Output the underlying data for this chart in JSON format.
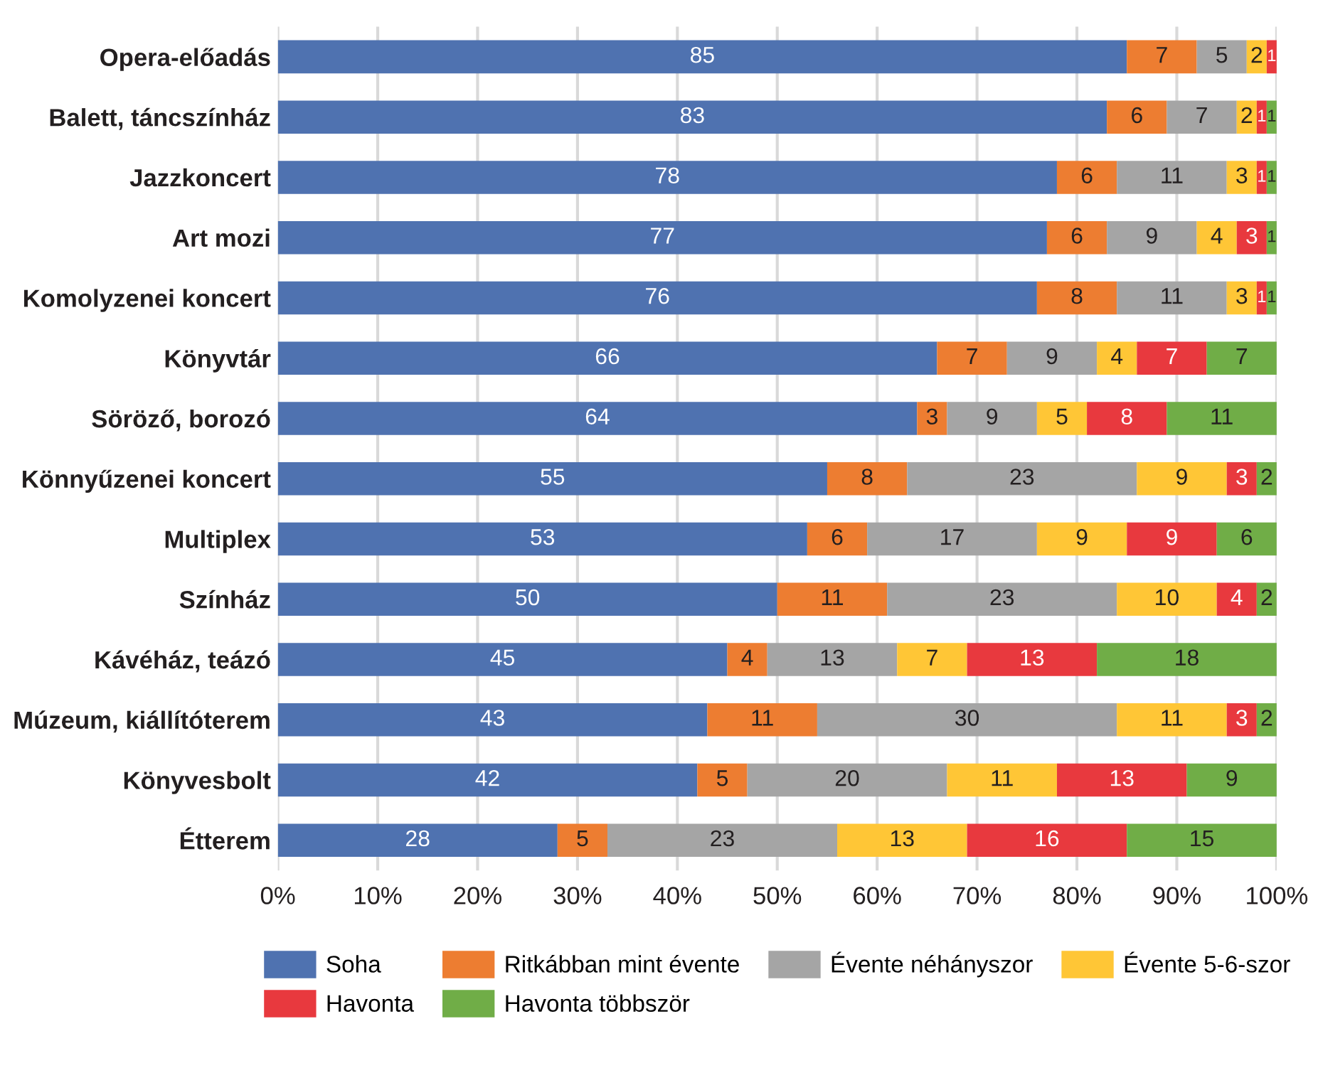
{
  "chart_data": {
    "type": "bar",
    "orientation": "horizontal",
    "stacked": true,
    "data_labels": true,
    "grid": "x",
    "legend": "bottom",
    "categories": [
      "Opera-előadás",
      "Balett, táncszínház",
      "Jazzkoncert",
      "Art mozi",
      "Komolyzenei koncert",
      "Könyvtár",
      "Söröző, borozó",
      "Könnyűzenei koncert",
      "Multiplex",
      "Színház",
      "Kávéház, teázó",
      "Múzeum, kiállítóterem",
      "Könyvesbolt",
      "Étterem"
    ],
    "xlim": [
      0,
      100
    ],
    "xticks": [
      {
        "value": 0,
        "label": "0%"
      },
      {
        "value": 10,
        "label": "10%"
      },
      {
        "value": 20,
        "label": "20%"
      },
      {
        "value": 30,
        "label": "30%"
      },
      {
        "value": 40,
        "label": "40%"
      },
      {
        "value": 50,
        "label": "50%"
      },
      {
        "value": 60,
        "label": "60%"
      },
      {
        "value": 70,
        "label": "70%"
      },
      {
        "value": 80,
        "label": "80%"
      },
      {
        "value": 90,
        "label": "90%"
      },
      {
        "value": 100,
        "label": "100%"
      }
    ],
    "series": [
      {
        "name": "Soha",
        "color": "#4f72b0",
        "values": [
          85,
          83,
          78,
          77,
          76,
          66,
          64,
          55,
          53,
          50,
          45,
          43,
          42,
          28
        ]
      },
      {
        "name": "Ritkábban mint évente",
        "color": "#ed7d31",
        "values": [
          7,
          6,
          6,
          6,
          8,
          7,
          3,
          8,
          6,
          11,
          4,
          11,
          5,
          5
        ]
      },
      {
        "name": "Évente néhányszor",
        "color": "#a5a5a5",
        "values": [
          5,
          7,
          11,
          9,
          11,
          9,
          9,
          23,
          17,
          23,
          13,
          30,
          20,
          23
        ]
      },
      {
        "name": "Évente 5-6-szor",
        "color": "#ffc636",
        "values": [
          2,
          2,
          3,
          4,
          3,
          4,
          5,
          9,
          9,
          10,
          7,
          11,
          11,
          13
        ]
      },
      {
        "name": "Havonta",
        "color": "#e8393e",
        "values": [
          1,
          1,
          1,
          3,
          1,
          7,
          8,
          3,
          9,
          4,
          13,
          3,
          13,
          16
        ]
      },
      {
        "name": "Havonta többször",
        "color": "#70ad47",
        "values": [
          null,
          1,
          1,
          1,
          1,
          7,
          11,
          2,
          6,
          2,
          18,
          2,
          9,
          15
        ]
      }
    ]
  }
}
